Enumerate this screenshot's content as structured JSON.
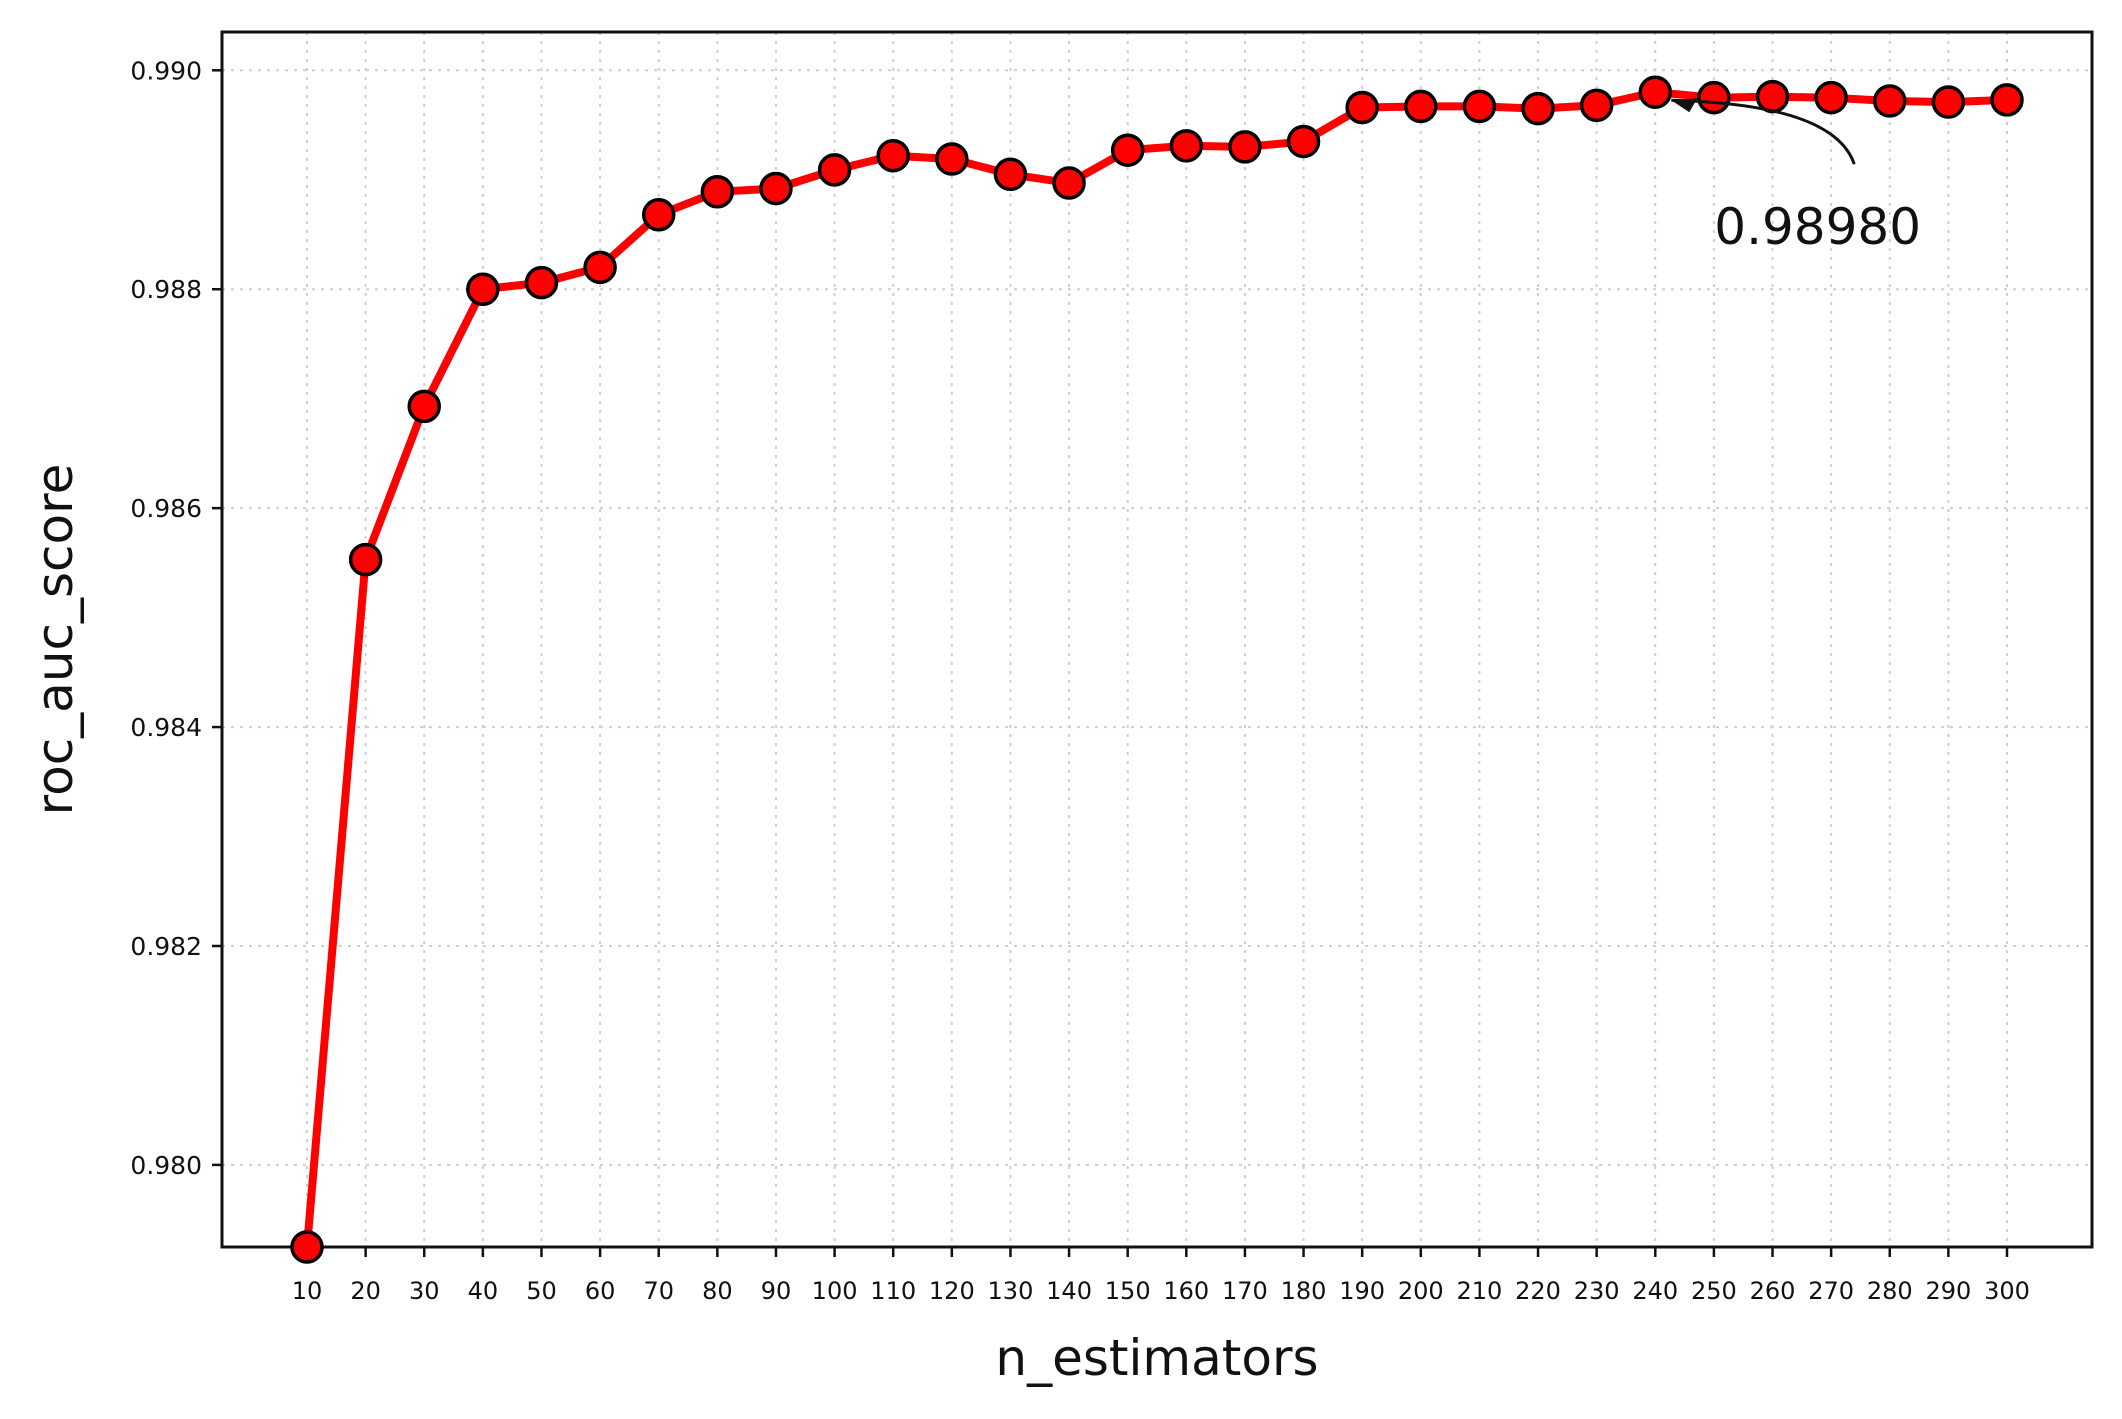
{
  "chart_data": {
    "type": "line",
    "title": "",
    "xlabel": "n_estimators",
    "ylabel": "roc_auc_score",
    "x": [
      10,
      20,
      30,
      40,
      50,
      60,
      70,
      80,
      90,
      100,
      110,
      120,
      130,
      140,
      150,
      160,
      170,
      180,
      190,
      200,
      210,
      220,
      230,
      240,
      250,
      260,
      270,
      280,
      290,
      300
    ],
    "x_tick_labels": [
      "10",
      "20",
      "30",
      "40",
      "50",
      "60",
      "70",
      "80",
      "90",
      "100",
      "110",
      "120",
      "130",
      "140",
      "150",
      "160",
      "170",
      "180",
      "190",
      "200",
      "210",
      "220",
      "230",
      "240",
      "250",
      "260",
      "270",
      "280",
      "290",
      "300"
    ],
    "y_ticks": [
      0.98,
      0.982,
      0.984,
      0.986,
      0.988,
      0.99
    ],
    "y_tick_labels": [
      "0.980",
      "0.982",
      "0.984",
      "0.986",
      "0.988",
      "0.990"
    ],
    "ylim": [
      0.97925,
      0.99035
    ],
    "grid": true,
    "series": [
      {
        "values": [
          0.97925,
          0.98553,
          0.98693,
          0.988,
          0.98806,
          0.9882,
          0.98868,
          0.98889,
          0.98892,
          0.98909,
          0.98922,
          0.98919,
          0.98905,
          0.98897,
          0.98927,
          0.98931,
          0.9893,
          0.98935,
          0.98966,
          0.98967,
          0.98967,
          0.98965,
          0.98968,
          0.9898,
          0.98975,
          0.98976,
          0.98975,
          0.98972,
          0.98971,
          0.98973
        ],
        "color": "#ff0000",
        "marker_fill": "#ff0000",
        "marker_edge": "#000000"
      }
    ],
    "annotations": [
      {
        "text": "0.98980",
        "x": 240,
        "y": 0.9898
      }
    ]
  }
}
